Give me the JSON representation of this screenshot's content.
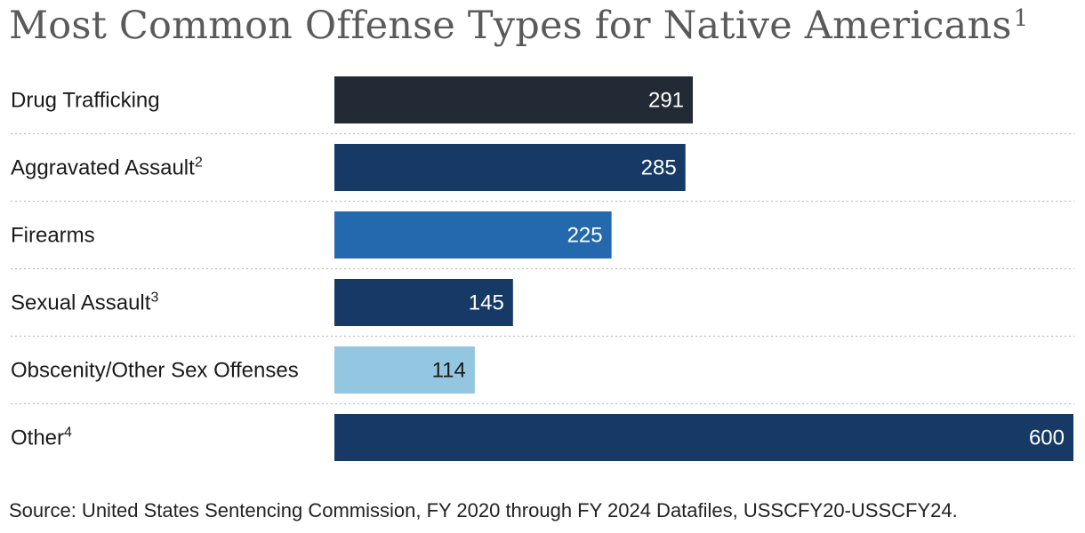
{
  "chart_data": {
    "type": "bar",
    "orientation": "horizontal",
    "title": "Most Common Offense Types for Native Americans",
    "title_superscript": "1",
    "categories": [
      "Drug Trafficking",
      "Aggravated Assault",
      "Firearms",
      "Sexual Assault",
      "Obscenity/Other Sex Offenses",
      "Other"
    ],
    "category_superscripts": [
      "",
      "2",
      "",
      "3",
      "",
      "4"
    ],
    "values": [
      291,
      285,
      225,
      145,
      114,
      600
    ],
    "bar_colors": [
      "#212a35",
      "#163a65",
      "#2468ae",
      "#163a65",
      "#93c6e0",
      "#163a65"
    ],
    "value_label_colors": [
      "#ffffff",
      "#ffffff",
      "#ffffff",
      "#ffffff",
      "#1a1a1a",
      "#ffffff"
    ],
    "xlim": [
      0,
      600
    ],
    "xlabel": "",
    "ylabel": "",
    "grid": false,
    "legend": "none"
  },
  "source": "Source: United States Sentencing Commission, FY 2020 through FY 2024 Datafiles, USSCFY20-USSCFY24."
}
